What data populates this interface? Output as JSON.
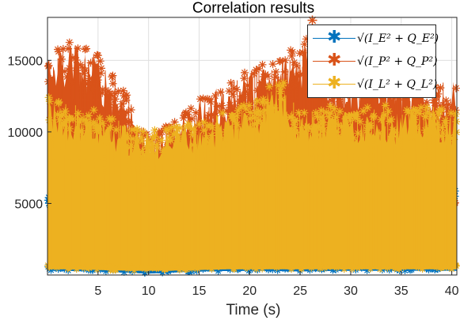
{
  "chart_data": {
    "type": "scatter",
    "title": "Correlation results",
    "xlabel": "Time (s)",
    "ylabel": "",
    "xlim": [
      0,
      40.5
    ],
    "ylim": [
      0,
      18000
    ],
    "xticks": [
      5,
      10,
      15,
      20,
      25,
      30,
      35,
      40
    ],
    "yticks": [
      5000,
      10000,
      15000
    ],
    "xtick_labels": [
      "5",
      "10",
      "15",
      "20",
      "25",
      "30",
      "35",
      "40"
    ],
    "ytick_labels": [
      "5000",
      "10000",
      "15000"
    ],
    "grid": true,
    "legend_position": "top-right",
    "marker": "*",
    "series": [
      {
        "name": "√(I_E² + Q_E²)",
        "color": "#0072BD",
        "x": [
          0,
          5,
          10,
          15,
          20,
          25,
          30,
          35,
          40
        ],
        "y_max": [
          5500,
          5000,
          4200,
          5600,
          5200,
          6000,
          5800,
          5500,
          5900
        ],
        "y_min": [
          300,
          250,
          100,
          250,
          300,
          250,
          300,
          300,
          300
        ]
      },
      {
        "name": "√(I_P² + Q_P²)",
        "color": "#D95319",
        "x": [
          0,
          2,
          5,
          8,
          10,
          12,
          15,
          18,
          20,
          23,
          25,
          26.2,
          28,
          30,
          33,
          35,
          38,
          40
        ],
        "y_max": [
          15500,
          16500,
          15500,
          12500,
          9800,
          10500,
          12500,
          13500,
          14500,
          15000,
          16500,
          17800,
          14500,
          14500,
          15000,
          14000,
          13500,
          13500
        ],
        "y_min": [
          5000,
          5000,
          4500,
          3500,
          3000,
          3500,
          4500,
          5000,
          5000,
          5000,
          5000,
          5000,
          5000,
          5000,
          5000,
          5000,
          5000,
          5000
        ]
      },
      {
        "name": "√(I_L² + Q_L²)",
        "color": "#EDB120",
        "x": [
          0,
          2,
          5,
          8,
          10,
          12,
          15,
          18,
          20,
          23,
          25,
          28,
          30,
          33,
          35,
          38,
          40
        ],
        "y_max": [
          12500,
          12000,
          11500,
          10500,
          10000,
          10500,
          11000,
          11500,
          12000,
          14000,
          11500,
          12000,
          11500,
          12000,
          11500,
          12000,
          11500
        ],
        "y_min": [
          400,
          400,
          350,
          300,
          300,
          300,
          350,
          400,
          400,
          400,
          400,
          400,
          400,
          400,
          400,
          400,
          400
        ]
      }
    ]
  },
  "legend": {
    "entries": [
      {
        "label": "√(I_E² + Q_E²)",
        "color": "#0072BD"
      },
      {
        "label": "√(I_P² + Q_P²)",
        "color": "#D95319"
      },
      {
        "label": "√(I_L² + Q_L²)",
        "color": "#EDB120"
      }
    ]
  }
}
